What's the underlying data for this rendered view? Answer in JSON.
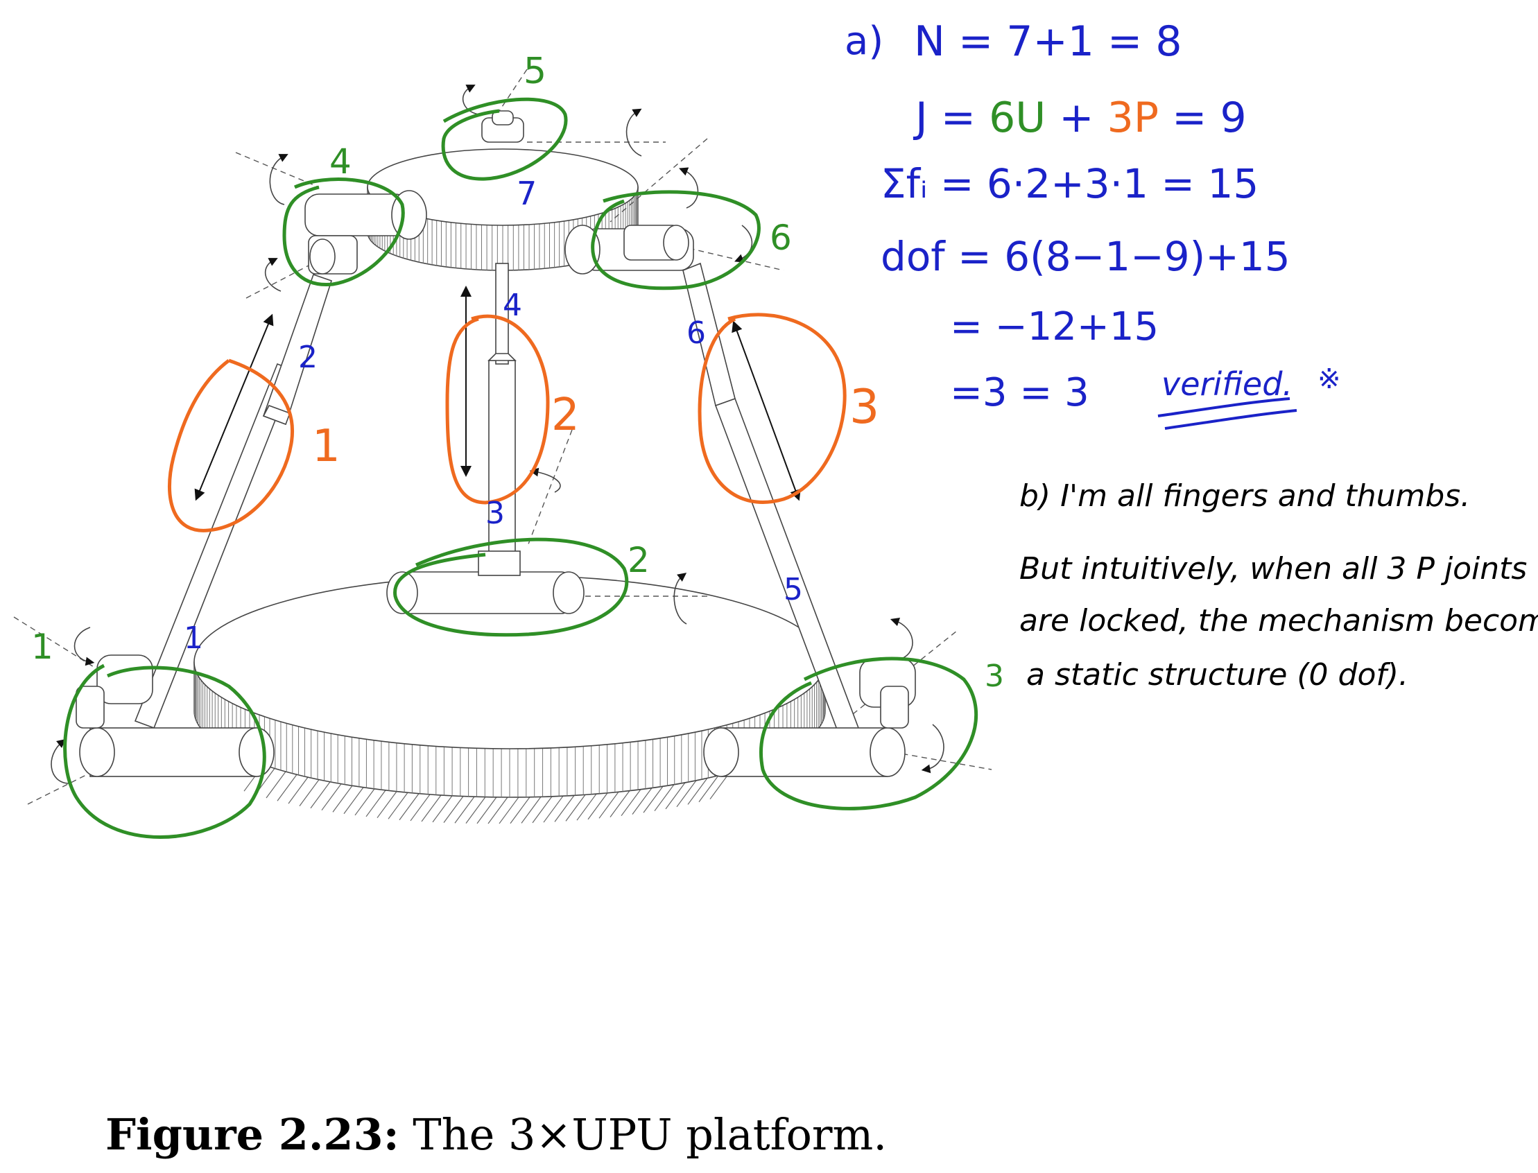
{
  "figure": {
    "caption_label": "Figure 2.23:",
    "caption_text": " The 3×UPU platform."
  },
  "colors": {
    "blue_ink": "#1a22c8",
    "green_ink": "#2f8f26",
    "orange_ink": "#ef6a1f",
    "black_ink": "#000000"
  },
  "part_a": {
    "label": "a)",
    "line1": "N = 7+1 = 8",
    "line2_prefix": "J =",
    "line2_u": "6U",
    "line2_plus": "+",
    "line2_p": "3P",
    "line2_suffix": "= 9",
    "line3": "Σfᵢ = 6·2+3·1 = 15",
    "line4": "dof = 6(8−1−9)+15",
    "line5": "= −12+15",
    "line6": "=3 = 3",
    "verified": "verified.",
    "mark": "※"
  },
  "part_b": {
    "line1": "b) I'm all fingers and thumbs.",
    "line2": "But intuitively, when all 3 P joints",
    "line3": "are locked, the mechanism becomes",
    "line4": "a static structure (0 dof)."
  },
  "link_labels": {
    "l1": "1",
    "l2": "2",
    "l3": "3",
    "l4": "4",
    "l5": "5",
    "l6": "6",
    "l7": "7"
  },
  "u_joint_labels": {
    "u1": "1",
    "u2": "2",
    "u3": "3",
    "u4": "4",
    "u5": "5",
    "u6": "6"
  },
  "p_joint_labels": {
    "p1": "1",
    "p2": "2",
    "p3": "3"
  }
}
